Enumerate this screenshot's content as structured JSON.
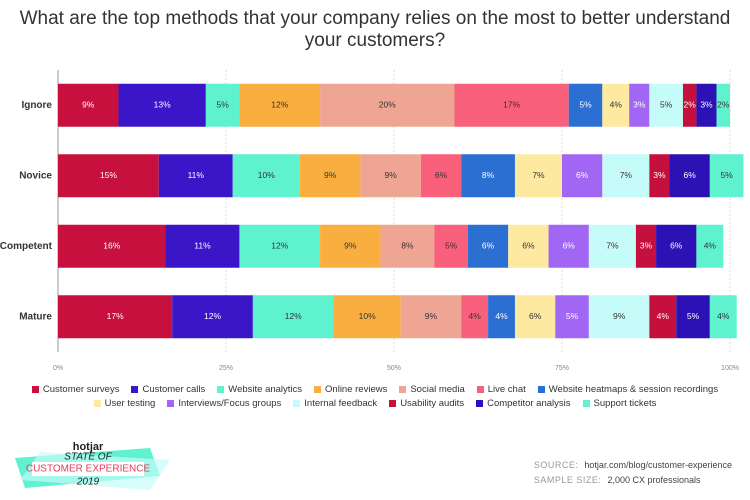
{
  "chart_data": {
    "type": "stacked-barh",
    "title": "What are the top methods that your company relies on the most to better understand your customers?",
    "categories": [
      "Ignore",
      "Novice",
      "Competent",
      "Mature"
    ],
    "xlim": [
      0,
      100
    ],
    "xticks": [
      {
        "value": 0,
        "label": "0%"
      },
      {
        "value": 25,
        "label": "25%"
      },
      {
        "value": 50,
        "label": "50%"
      },
      {
        "value": 75,
        "label": "75%"
      },
      {
        "value": 100,
        "label": "100%"
      }
    ],
    "grid": true,
    "legend": "bottom",
    "series": [
      {
        "name": "Customer surveys",
        "color": "#c8103e",
        "values": [
          9,
          15,
          16,
          17
        ],
        "value_labels": [
          "9%",
          "15%",
          "16%",
          "17%"
        ]
      },
      {
        "name": "Customer calls",
        "color": "#3b16c9",
        "values": [
          13,
          11,
          11,
          12
        ],
        "value_labels": [
          "13%",
          "11%",
          "11%",
          "12%"
        ]
      },
      {
        "name": "Website analytics",
        "color": "#5ef2cf",
        "values": [
          5,
          10,
          12,
          12
        ],
        "value_labels": [
          "5%",
          "10%",
          "12%",
          "12%"
        ]
      },
      {
        "name": "Online reviews",
        "color": "#fbae40",
        "values": [
          12,
          9,
          9,
          10
        ],
        "value_labels": [
          "12%",
          "9%",
          "9%",
          "10%"
        ]
      },
      {
        "name": "Social media",
        "color": "#eea593",
        "values": [
          20,
          9,
          8,
          9
        ],
        "value_labels": [
          "20%",
          "9%",
          "8%",
          "9%"
        ]
      },
      {
        "name": "Live chat",
        "color": "#f8607b",
        "values": [
          17,
          6,
          5,
          4
        ],
        "value_labels": [
          "17%",
          "6%",
          "5%",
          "4%"
        ]
      },
      {
        "name": "Website heatmaps & session recordings",
        "color": "#2b6fd3",
        "values": [
          5,
          8,
          6,
          4
        ],
        "value_labels": [
          "5%",
          "8%",
          "6%",
          "4%"
        ]
      },
      {
        "name": "User testing",
        "color": "#fde9a0",
        "values": [
          4,
          7,
          6,
          6
        ],
        "value_labels": [
          "4%",
          "7%",
          "6%",
          "6%"
        ]
      },
      {
        "name": "Interviews/Focus groups",
        "color": "#a266f4",
        "values": [
          3,
          6,
          6,
          5
        ],
        "value_labels": [
          "3%",
          "6%",
          "6%",
          "5%"
        ]
      },
      {
        "name": "Internal feedback",
        "color": "#c5fbf9",
        "values": [
          5,
          7,
          7,
          9
        ],
        "value_labels": [
          "5%",
          "7%",
          "7%",
          "9%"
        ]
      },
      {
        "name": "Usability audits",
        "color": "#c50f3c",
        "values": [
          2,
          3,
          3,
          4
        ],
        "value_labels": [
          "2%",
          "3%",
          "3%",
          "4%"
        ]
      },
      {
        "name": "Competitor analysis",
        "color": "#2c11b5",
        "values": [
          3,
          6,
          6,
          5
        ],
        "value_labels": [
          "3%",
          "6%",
          "6%",
          "5%"
        ]
      },
      {
        "name": "Support tickets",
        "color": "#5ef2cf",
        "values": [
          2,
          5,
          4,
          4
        ],
        "value_labels": [
          "2%",
          "5%",
          "4%",
          "4%"
        ]
      }
    ]
  },
  "footer": {
    "brand": "hotjar",
    "report_line1": "STATE OF",
    "report_line2": "CUSTOMER EXPERIENCE",
    "report_year": "2019",
    "source_label": "SOURCE:",
    "source": "hotjar.com/blog/customer-experience",
    "sample_label": "SAMPLE SIZE:",
    "sample": "2,000 CX professionals"
  }
}
